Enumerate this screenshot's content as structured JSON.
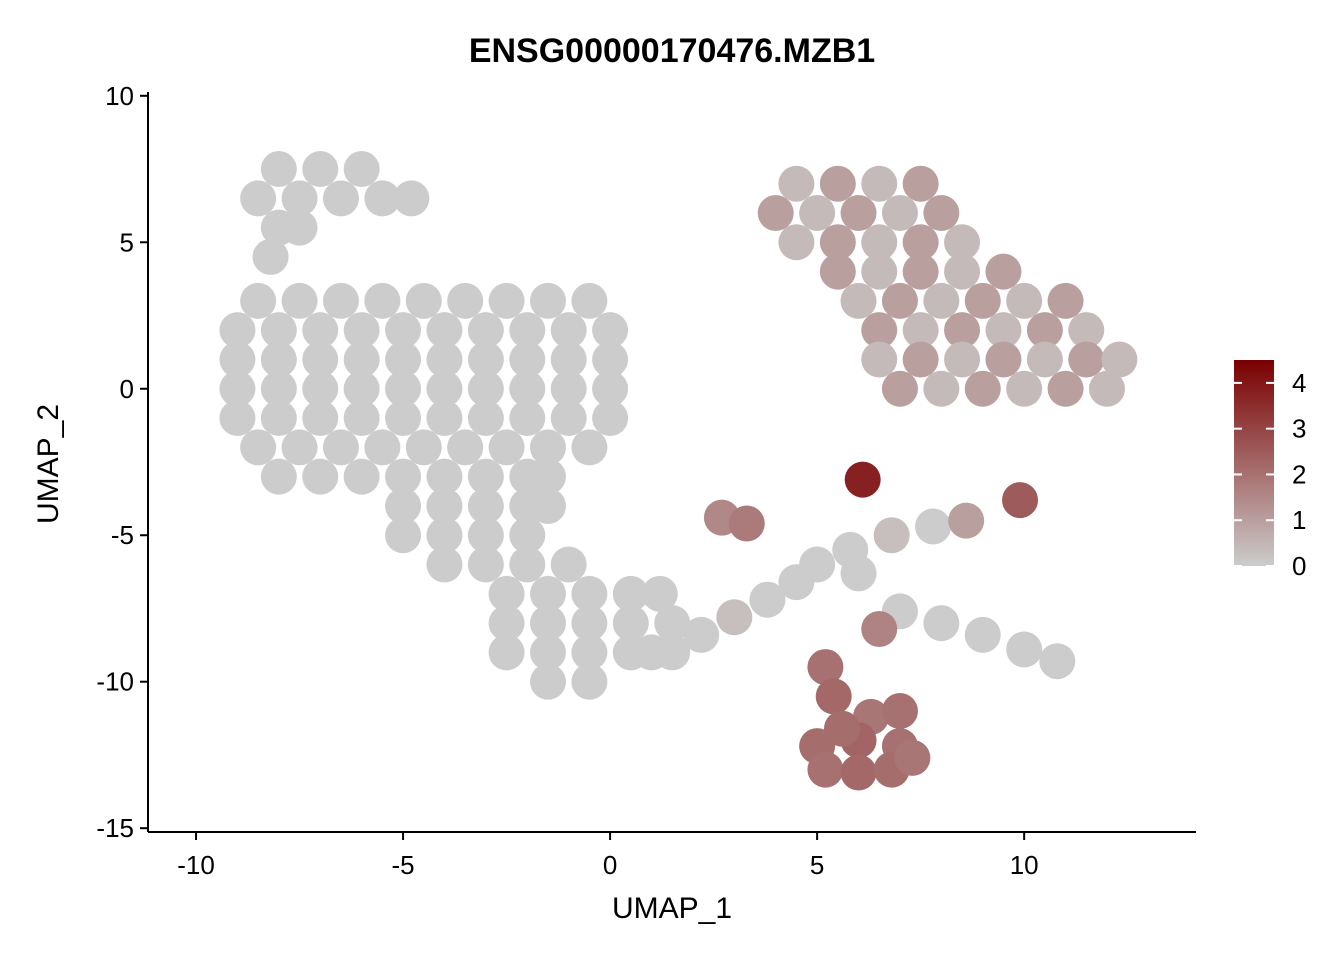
{
  "chart_data": {
    "type": "scatter",
    "title": "ENSG00000170476.MZB1",
    "x_label": "UMAP_1",
    "y_label": "UMAP_2",
    "xlim": [
      -11.16,
      14.15
    ],
    "ylim": [
      -15.13,
      10.13
    ],
    "xticks": [
      -10,
      -5,
      0,
      5,
      10
    ],
    "yticks": [
      -15,
      -10,
      -5,
      0,
      5,
      10
    ],
    "color_low": "#cccccc",
    "color_high": "#7a0000",
    "clim": [
      0,
      4.5
    ],
    "cticks": [
      0,
      1,
      2,
      3,
      4
    ],
    "x": [
      -8,
      -7,
      -6,
      -8.5,
      -7.5,
      -6.5,
      -5.5,
      -4.8,
      -8,
      -7.5,
      -8.2,
      -8.5,
      -7.5,
      -6.5,
      -5.5,
      -4.5,
      -3.5,
      -2.5,
      -1.5,
      -0.5,
      -9,
      -8,
      -7,
      -6,
      -5,
      -4,
      -3,
      -2,
      -1,
      0,
      -9,
      -8,
      -7,
      -6,
      -5,
      -4,
      -3,
      -2,
      -1,
      0,
      -9,
      -8,
      -7,
      -6,
      -5,
      -4,
      -3,
      -2,
      -1,
      0,
      -9,
      -8,
      -7,
      -6,
      -5,
      -4,
      -3,
      -2,
      -1,
      0,
      -8.5,
      -7.5,
      -6.5,
      -5.5,
      -4.5,
      -3.5,
      -2.5,
      -1.5,
      -0.5,
      -8,
      -7,
      -6,
      -5,
      -4,
      -3,
      -2,
      -1.5,
      -5,
      -4,
      -3,
      -2,
      -1.5,
      -5,
      -4,
      -3,
      -2,
      -4,
      -3,
      -2,
      -1,
      -2.5,
      -1.5,
      -0.5,
      0.5,
      1.2,
      -2.5,
      -1.5,
      -0.5,
      0.5,
      1.5,
      -2.5,
      -1.5,
      -0.5,
      0.5,
      1,
      -1.5,
      -0.5,
      4.5,
      5.5,
      6.5,
      7.5,
      4,
      5,
      6,
      7,
      8,
      4.5,
      5.5,
      6.5,
      7.5,
      8.5,
      5.5,
      6.5,
      7.5,
      8.5,
      9.5,
      6,
      7,
      8,
      9,
      10,
      11,
      6.5,
      7.5,
      8.5,
      9.5,
      10.5,
      11.5,
      6.5,
      7.5,
      8.5,
      9.5,
      10.5,
      11.5,
      12.3,
      7,
      8,
      9,
      10,
      11,
      12,
      1.5,
      2.2,
      3,
      3.8,
      4.5,
      5,
      5.8,
      6,
      6.8,
      7.8,
      8.6,
      7,
      8,
      9,
      10,
      10.8,
      2.7,
      3.3,
      6.1,
      9.9,
      6.5,
      5.2,
      5.4,
      6.3,
      7,
      5,
      6,
      7,
      5.2,
      6,
      6.8,
      7.3,
      5.6
    ],
    "y": [
      7.5,
      7.5,
      7.5,
      6.5,
      6.5,
      6.5,
      6.5,
      6.5,
      5.5,
      5.5,
      4.5,
      3,
      3,
      3,
      3,
      3,
      3,
      3,
      3,
      3,
      2,
      2,
      2,
      2,
      2,
      2,
      2,
      2,
      2,
      2,
      1,
      1,
      1,
      1,
      1,
      1,
      1,
      1,
      1,
      1,
      0,
      0,
      0,
      0,
      0,
      0,
      0,
      0,
      0,
      0,
      -1,
      -1,
      -1,
      -1,
      -1,
      -1,
      -1,
      -1,
      -1,
      -1,
      -2,
      -2,
      -2,
      -2,
      -2,
      -2,
      -2,
      -2,
      -2,
      -3,
      -3,
      -3,
      -3,
      -3,
      -3,
      -3,
      -3,
      -4,
      -4,
      -4,
      -4,
      -4,
      -5,
      -5,
      -5,
      -5,
      -6,
      -6,
      -6,
      -6,
      -7,
      -7,
      -7,
      -7,
      -7,
      -8,
      -8,
      -8,
      -8,
      -8,
      -9,
      -9,
      -9,
      -9,
      -9,
      -10,
      -10,
      7,
      7,
      7,
      7,
      6,
      6,
      6,
      6,
      6,
      5,
      5,
      5,
      5,
      5,
      4,
      4,
      4,
      4,
      4,
      3,
      3,
      3,
      3,
      3,
      3,
      2,
      2,
      2,
      2,
      2,
      2,
      1,
      1,
      1,
      1,
      1,
      1,
      1,
      0,
      0,
      0,
      0,
      0,
      0,
      -9,
      -8.4,
      -7.8,
      -7.2,
      -6.6,
      -6,
      -5.5,
      -6.3,
      -5,
      -4.7,
      -4.5,
      -7.6,
      -8,
      -8.4,
      -8.9,
      -9.3,
      -4.4,
      -4.6,
      -3.1,
      -3.8,
      -8.2,
      -9.5,
      -10.5,
      -11.2,
      -11,
      -12.2,
      -12,
      -12.2,
      -13,
      -13.1,
      -13,
      -12.6,
      -11.6
    ],
    "values": [
      0,
      0,
      0,
      0,
      0,
      0,
      0,
      0,
      0,
      0,
      0,
      0,
      0,
      0,
      0,
      0,
      0,
      0,
      0,
      0,
      0,
      0,
      0,
      0,
      0,
      0,
      0,
      0,
      0,
      0,
      0,
      0,
      0,
      0,
      0,
      0,
      0,
      0,
      0,
      0,
      0,
      0,
      0,
      0,
      0,
      0,
      0,
      0,
      0,
      0,
      0,
      0,
      0,
      0,
      0,
      0,
      0,
      0,
      0,
      0,
      0,
      0,
      0,
      0,
      0,
      0,
      0,
      0,
      0,
      0,
      0,
      0,
      0,
      0,
      0,
      0,
      0,
      0,
      0,
      0,
      0,
      0,
      0,
      0,
      0,
      0,
      0,
      0,
      0,
      0,
      0,
      0,
      0,
      0,
      0,
      0,
      0,
      0,
      0,
      0,
      0,
      0,
      0,
      0,
      0,
      0,
      0,
      0.4,
      1,
      0.4,
      1,
      1,
      0.4,
      1,
      0.4,
      1,
      0.4,
      1,
      0.4,
      1,
      0.4,
      1,
      0.4,
      1,
      0.4,
      1,
      0.4,
      1,
      0.4,
      1,
      0.4,
      1,
      1,
      0.4,
      1,
      0.4,
      1,
      0.4,
      0.4,
      1,
      0.4,
      1,
      0.4,
      1,
      0.4,
      1,
      0.4,
      1,
      0.4,
      1,
      0.4,
      0,
      0,
      0.3,
      0,
      0,
      0,
      0,
      0,
      0.3,
      0,
      1,
      0,
      0,
      0,
      0,
      0,
      1.5,
      1.8,
      3.8,
      2.5,
      1.6,
      2,
      2.2,
      1.9,
      2,
      2.1,
      2.3,
      2,
      2,
      2.2,
      2.1,
      1.9,
      2.1
    ]
  }
}
